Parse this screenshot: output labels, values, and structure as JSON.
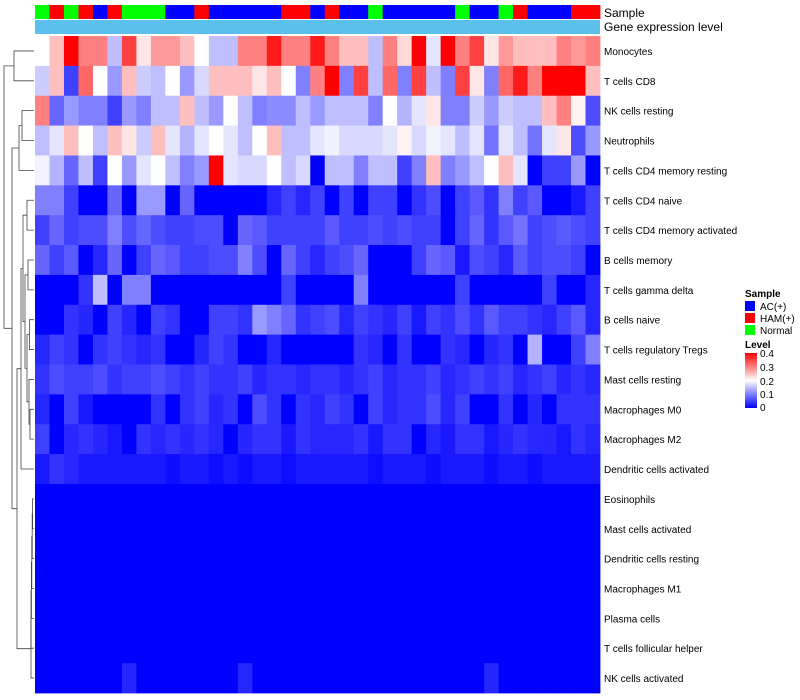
{
  "chart_data": {
    "type": "heatmap",
    "annotation_rows": [
      "Sample",
      "Gene expression level"
    ],
    "row_labels": [
      "Monocytes",
      "T cells CD8",
      "NK cells resting",
      "Neutrophils",
      "T cells CD4 memory resting",
      "T cells CD4 naive",
      "T cells CD4 memory activated",
      "B cells memory",
      "T cells gamma delta",
      "B cells naive",
      "T cells regulatory  Tregs",
      "Mast cells resting",
      "Macrophages M0",
      "Macrophages M2",
      "Dendritic cells activated",
      "Eosinophils",
      "Mast cells activated",
      "Dendritic cells resting",
      "Macrophages M1",
      "Plasma cells",
      "T cells follicular helper",
      "NK cells activated"
    ],
    "sample_groups": [
      "Normal",
      "HAM(+)",
      "Normal",
      "HAM(+)",
      "AC(+)",
      "HAM(+)",
      "Normal",
      "Normal",
      "Normal",
      "AC(+)",
      "AC(+)",
      "HAM(+)",
      "AC(+)",
      "AC(+)",
      "AC(+)",
      "AC(+)",
      "AC(+)",
      "HAM(+)",
      "HAM(+)",
      "AC(+)",
      "HAM(+)",
      "AC(+)",
      "AC(+)",
      "Normal",
      "AC(+)",
      "AC(+)",
      "AC(+)",
      "AC(+)",
      "AC(+)",
      "Normal",
      "AC(+)",
      "AC(+)",
      "Normal",
      "HAM(+)",
      "AC(+)",
      "AC(+)",
      "AC(+)",
      "HAM(+)",
      "HAM(+)"
    ],
    "values": [
      [
        0.2,
        0.25,
        0.4,
        0.3,
        0.3,
        0.15,
        0.35,
        0.22,
        0.28,
        0.28,
        0.25,
        0.2,
        0.15,
        0.15,
        0.3,
        0.3,
        0.38,
        0.3,
        0.3,
        0.38,
        0.3,
        0.25,
        0.25,
        0.15,
        0.3,
        0.23,
        0.4,
        0.18,
        0.4,
        0.3,
        0.35,
        0.22,
        0.28,
        0.25,
        0.25,
        0.25,
        0.3,
        0.28,
        0.3
      ],
      [
        0.16,
        0.25,
        0.05,
        0.32,
        0.2,
        0.12,
        0.25,
        0.16,
        0.15,
        0.2,
        0.12,
        0.17,
        0.25,
        0.25,
        0.25,
        0.22,
        0.25,
        0.2,
        0.1,
        0.3,
        0.4,
        0.1,
        0.35,
        0.15,
        0.32,
        0.1,
        0.35,
        0.15,
        0.1,
        0.35,
        0.22,
        0.1,
        0.32,
        0.38,
        0.3,
        0.4,
        0.4,
        0.4,
        0.25
      ],
      [
        0.3,
        0.08,
        0.12,
        0.1,
        0.1,
        0.05,
        0.12,
        0.1,
        0.15,
        0.15,
        0.25,
        0.15,
        0.12,
        0.2,
        0.15,
        0.1,
        0.11,
        0.11,
        0.15,
        0.12,
        0.15,
        0.15,
        0.15,
        0.1,
        0.2,
        0.14,
        0.18,
        0.22,
        0.1,
        0.1,
        0.16,
        0.12,
        0.16,
        0.15,
        0.15,
        0.25,
        0.3,
        0.21,
        0.06
      ],
      [
        0.15,
        0.18,
        0.25,
        0.2,
        0.15,
        0.25,
        0.22,
        0.16,
        0.25,
        0.18,
        0.14,
        0.18,
        0.2,
        0.18,
        0.15,
        0.2,
        0.25,
        0.15,
        0.15,
        0.18,
        0.19,
        0.17,
        0.17,
        0.17,
        0.18,
        0.21,
        0.17,
        0.19,
        0.18,
        0.15,
        0.18,
        0.09,
        0.18,
        0.15,
        0.09,
        0.18,
        0.22,
        0.06,
        0.12
      ],
      [
        0.19,
        0.14,
        0.08,
        0.15,
        0.05,
        0.2,
        0.12,
        0.18,
        0.2,
        0.15,
        0.1,
        0.12,
        0.4,
        0.18,
        0.17,
        0.17,
        0.2,
        0.15,
        0.17,
        0.0,
        0.15,
        0.15,
        0.1,
        0.15,
        0.15,
        0.05,
        0.1,
        0.25,
        0.1,
        0.12,
        0.15,
        0.2,
        0.25,
        0.18,
        0.0,
        0.05,
        0.05,
        0.12,
        0.0
      ],
      [
        0.1,
        0.1,
        0.05,
        0.0,
        0.0,
        0.08,
        0.0,
        0.12,
        0.12,
        0.0,
        0.08,
        0.0,
        0.0,
        0.0,
        0.0,
        0.0,
        0.03,
        0.05,
        0.03,
        0.05,
        0.0,
        0.05,
        0.0,
        0.05,
        0.05,
        0.0,
        0.04,
        0.06,
        0.0,
        0.05,
        0.07,
        0.04,
        0.1,
        0.05,
        0.07,
        0.0,
        0.0,
        0.02,
        0.05
      ],
      [
        0.05,
        0.08,
        0.05,
        0.06,
        0.06,
        0.1,
        0.06,
        0.08,
        0.06,
        0.05,
        0.05,
        0.06,
        0.06,
        0.0,
        0.08,
        0.07,
        0.05,
        0.05,
        0.05,
        0.05,
        0.07,
        0.05,
        0.05,
        0.06,
        0.05,
        0.06,
        0.05,
        0.05,
        0.0,
        0.05,
        0.08,
        0.04,
        0.07,
        0.09,
        0.05,
        0.06,
        0.07,
        0.06,
        0.05
      ],
      [
        0.08,
        0.05,
        0.07,
        0.0,
        0.03,
        0.08,
        0.0,
        0.05,
        0.08,
        0.07,
        0.05,
        0.05,
        0.06,
        0.06,
        0.1,
        0.06,
        0.0,
        0.08,
        0.05,
        0.03,
        0.05,
        0.06,
        0.08,
        0.0,
        0.0,
        0.0,
        0.05,
        0.08,
        0.07,
        0.02,
        0.06,
        0.05,
        0.03,
        0.07,
        0.05,
        0.06,
        0.06,
        0.05,
        0.0
      ],
      [
        0.0,
        0.0,
        0.0,
        0.04,
        0.15,
        0.0,
        0.1,
        0.1,
        0.0,
        0.0,
        0.0,
        0.0,
        0.0,
        0.0,
        0.0,
        0.0,
        0.0,
        0.05,
        0.0,
        0.0,
        0.0,
        0.0,
        0.1,
        0.0,
        0.0,
        0.0,
        0.0,
        0.0,
        0.0,
        0.05,
        0.0,
        0.0,
        0.0,
        0.0,
        0.0,
        0.05,
        0.0,
        0.0,
        0.03
      ],
      [
        0.0,
        0.0,
        0.04,
        0.03,
        0.0,
        0.05,
        0.03,
        0.0,
        0.05,
        0.04,
        0.0,
        0.0,
        0.05,
        0.05,
        0.04,
        0.12,
        0.1,
        0.08,
        0.04,
        0.05,
        0.06,
        0.03,
        0.05,
        0.04,
        0.03,
        0.05,
        0.02,
        0.05,
        0.04,
        0.06,
        0.04,
        0.07,
        0.05,
        0.05,
        0.04,
        0.03,
        0.05,
        0.07,
        0.03
      ],
      [
        0.03,
        0.05,
        0.04,
        0.0,
        0.04,
        0.05,
        0.04,
        0.03,
        0.04,
        0.0,
        0.0,
        0.03,
        0.05,
        0.04,
        0.0,
        0.0,
        0.03,
        0.0,
        0.0,
        0.0,
        0.0,
        0.0,
        0.04,
        0.03,
        0.0,
        0.04,
        0.0,
        0.0,
        0.04,
        0.03,
        0.0,
        0.03,
        0.04,
        0.0,
        0.14,
        0.0,
        0.0,
        0.05,
        0.1
      ],
      [
        0.04,
        0.06,
        0.05,
        0.05,
        0.06,
        0.04,
        0.05,
        0.05,
        0.06,
        0.05,
        0.04,
        0.05,
        0.04,
        0.04,
        0.05,
        0.03,
        0.04,
        0.04,
        0.03,
        0.04,
        0.04,
        0.03,
        0.04,
        0.05,
        0.03,
        0.04,
        0.04,
        0.05,
        0.03,
        0.04,
        0.05,
        0.04,
        0.05,
        0.03,
        0.04,
        0.05,
        0.03,
        0.04,
        0.03
      ],
      [
        0.03,
        0.0,
        0.05,
        0.02,
        0.0,
        0.0,
        0.0,
        0.0,
        0.04,
        0.0,
        0.04,
        0.05,
        0.03,
        0.04,
        0.0,
        0.06,
        0.04,
        0.0,
        0.04,
        0.03,
        0.05,
        0.04,
        0.0,
        0.05,
        0.03,
        0.04,
        0.04,
        0.06,
        0.03,
        0.05,
        0.0,
        0.0,
        0.04,
        0.0,
        0.03,
        0.0,
        0.04,
        0.04,
        0.04
      ],
      [
        0.05,
        0.0,
        0.03,
        0.04,
        0.03,
        0.02,
        0.0,
        0.04,
        0.03,
        0.04,
        0.03,
        0.04,
        0.03,
        0.0,
        0.03,
        0.04,
        0.04,
        0.02,
        0.04,
        0.03,
        0.03,
        0.03,
        0.04,
        0.02,
        0.04,
        0.04,
        0.0,
        0.03,
        0.02,
        0.04,
        0.04,
        0.02,
        0.03,
        0.04,
        0.03,
        0.03,
        0.02,
        0.04,
        0.03
      ],
      [
        0.02,
        0.04,
        0.03,
        0.02,
        0.02,
        0.02,
        0.02,
        0.02,
        0.02,
        0.01,
        0.02,
        0.02,
        0.01,
        0.02,
        0.01,
        0.02,
        0.02,
        0.01,
        0.02,
        0.02,
        0.02,
        0.02,
        0.02,
        0.01,
        0.02,
        0.02,
        0.02,
        0.01,
        0.02,
        0.02,
        0.02,
        0.01,
        0.02,
        0.02,
        0.01,
        0.02,
        0.02,
        0.02,
        0.02
      ],
      [
        0,
        0,
        0,
        0,
        0,
        0,
        0,
        0,
        0,
        0,
        0,
        0,
        0,
        0,
        0,
        0,
        0,
        0,
        0,
        0,
        0,
        0,
        0,
        0,
        0,
        0,
        0,
        0,
        0,
        0,
        0,
        0,
        0,
        0,
        0,
        0,
        0,
        0,
        0
      ],
      [
        0,
        0,
        0,
        0,
        0,
        0,
        0,
        0,
        0,
        0,
        0,
        0,
        0,
        0,
        0,
        0,
        0,
        0,
        0,
        0,
        0,
        0,
        0,
        0,
        0,
        0,
        0,
        0,
        0,
        0,
        0,
        0,
        0,
        0,
        0,
        0,
        0,
        0,
        0
      ],
      [
        0,
        0,
        0,
        0,
        0,
        0,
        0,
        0,
        0,
        0,
        0,
        0,
        0,
        0,
        0,
        0,
        0,
        0,
        0,
        0,
        0,
        0,
        0,
        0,
        0,
        0,
        0,
        0,
        0,
        0,
        0,
        0,
        0,
        0,
        0,
        0,
        0,
        0,
        0
      ],
      [
        0,
        0,
        0,
        0,
        0,
        0,
        0,
        0,
        0,
        0,
        0,
        0,
        0,
        0,
        0,
        0,
        0,
        0,
        0,
        0,
        0,
        0,
        0,
        0,
        0,
        0,
        0,
        0,
        0,
        0,
        0,
        0,
        0,
        0,
        0,
        0,
        0,
        0,
        0
      ],
      [
        0,
        0,
        0,
        0,
        0,
        0,
        0,
        0,
        0,
        0,
        0,
        0,
        0,
        0,
        0,
        0,
        0,
        0,
        0,
        0,
        0,
        0,
        0,
        0,
        0,
        0,
        0,
        0,
        0,
        0,
        0,
        0,
        0,
        0,
        0,
        0,
        0,
        0,
        0
      ],
      [
        0,
        0,
        0,
        0,
        0,
        0,
        0,
        0,
        0,
        0,
        0,
        0,
        0,
        0,
        0,
        0,
        0,
        0,
        0,
        0,
        0,
        0,
        0,
        0,
        0,
        0,
        0,
        0,
        0,
        0,
        0,
        0,
        0,
        0,
        0,
        0,
        0,
        0,
        0
      ],
      [
        0,
        0,
        0,
        0,
        0,
        0,
        0.03,
        0,
        0,
        0,
        0,
        0,
        0,
        0,
        0.03,
        0,
        0,
        0,
        0,
        0,
        0,
        0,
        0,
        0,
        0,
        0,
        0,
        0,
        0,
        0,
        0,
        0.03,
        0,
        0,
        0,
        0,
        0,
        0,
        0
      ]
    ],
    "legend_sample": {
      "title": "Sample",
      "entries": [
        {
          "label": "AC(+)",
          "color": "#0000FF"
        },
        {
          "label": "HAM(+)",
          "color": "#FF0000"
        },
        {
          "label": "Normal",
          "color": "#00FF00"
        }
      ]
    },
    "legend_level": {
      "title": "Level",
      "ticks": [
        "0.4",
        "0.3",
        "0.2",
        "0.1",
        "0"
      ],
      "range": [
        0,
        0.4
      ]
    },
    "colors": {
      "low": "#0000FF",
      "mid": "#FFFFFF",
      "high": "#FF0000",
      "annotation_bar": "#5BC0EB"
    }
  }
}
